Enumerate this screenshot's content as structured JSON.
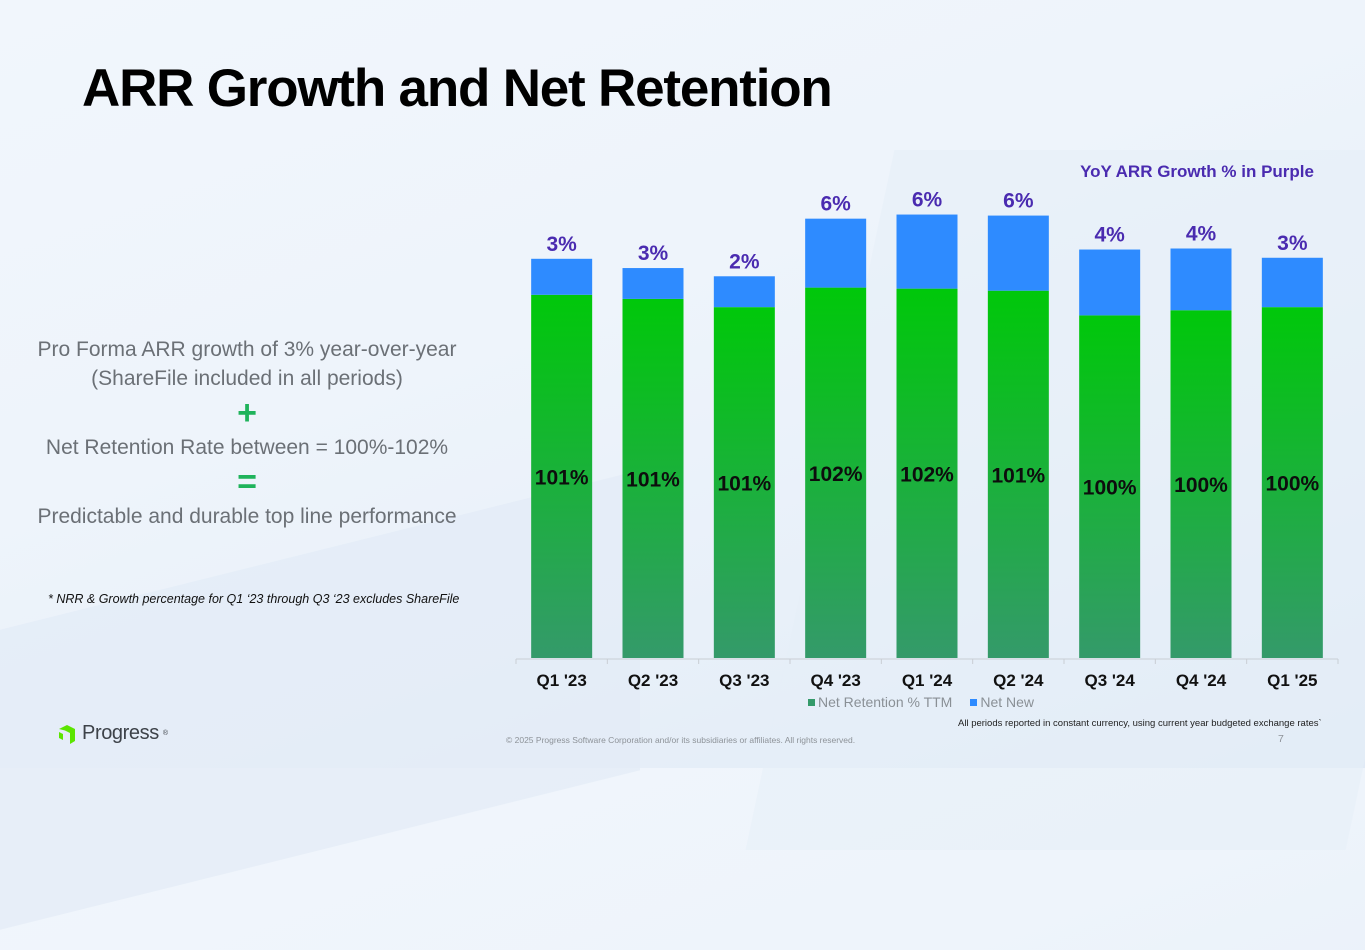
{
  "slide": {
    "title": "ARR Growth and Net Retention",
    "page_number": "7",
    "copyright": "© 2025 Progress Software Corporation and/or its subsidiaries or affiliates. All rights reserved.",
    "currency_note": "All periods reported in constant currency, using current year budgeted exchange rates`",
    "logo": {
      "name": "Progress",
      "registered_mark": "®",
      "icon": "progress-chevron-logo-icon",
      "color": "#5ce500"
    }
  },
  "left_panel": {
    "line1": "Pro Forma ARR growth of 3% year-over-year (ShareFile included in all periods)",
    "plus_symbol": "+",
    "line2": "Net Retention Rate between = 100%-102%",
    "equals_symbol": "=",
    "line3": "Predictable and durable top line performance",
    "footnote": "* NRR & Growth percentage for Q1 ‘23 through Q3 ‘23 excludes ShareFile",
    "symbol_color": "#1fb35b"
  },
  "chart_data": {
    "type": "bar",
    "stacked": true,
    "title": "",
    "annotation": "YoY ARR Growth % in Purple",
    "xlabel": "",
    "ylabel": "",
    "categories": [
      "Q1 '23",
      "Q2 '23",
      "Q3 '23",
      "Q4 '23",
      "Q1 '24",
      "Q2 '24",
      "Q3 '24",
      "Q4 '24",
      "Q1 '25"
    ],
    "series": [
      {
        "name": "Net Retention % TTM",
        "color_top": "#00c80a",
        "color_bottom": "#349a6a",
        "values": [
          353,
          349,
          341,
          360,
          359,
          357,
          333,
          338,
          341
        ],
        "value_units": "relative index (no y-axis shown; estimated)",
        "data_labels": [
          "101%",
          "101%",
          "101%",
          "102%",
          "102%",
          "101%",
          "100%",
          "100%",
          "100%"
        ]
      },
      {
        "name": "Net New",
        "color": "#2e8bff",
        "values": [
          35,
          30,
          30,
          67,
          72,
          73,
          64,
          60,
          48
        ],
        "value_units": "relative index (no y-axis shown; estimated)"
      }
    ],
    "growth_labels": [
      "3%",
      "3%",
      "2%",
      "6%",
      "6%",
      "6%",
      "4%",
      "4%",
      "3%"
    ],
    "growth_label_color": "#4a2bb0",
    "ylim": [
      0,
      450
    ],
    "grid": false,
    "y_axis_visible": false,
    "legend": {
      "placement": "bottom-center",
      "entries": [
        "Net Retention % TTM",
        "Net New"
      ]
    }
  }
}
